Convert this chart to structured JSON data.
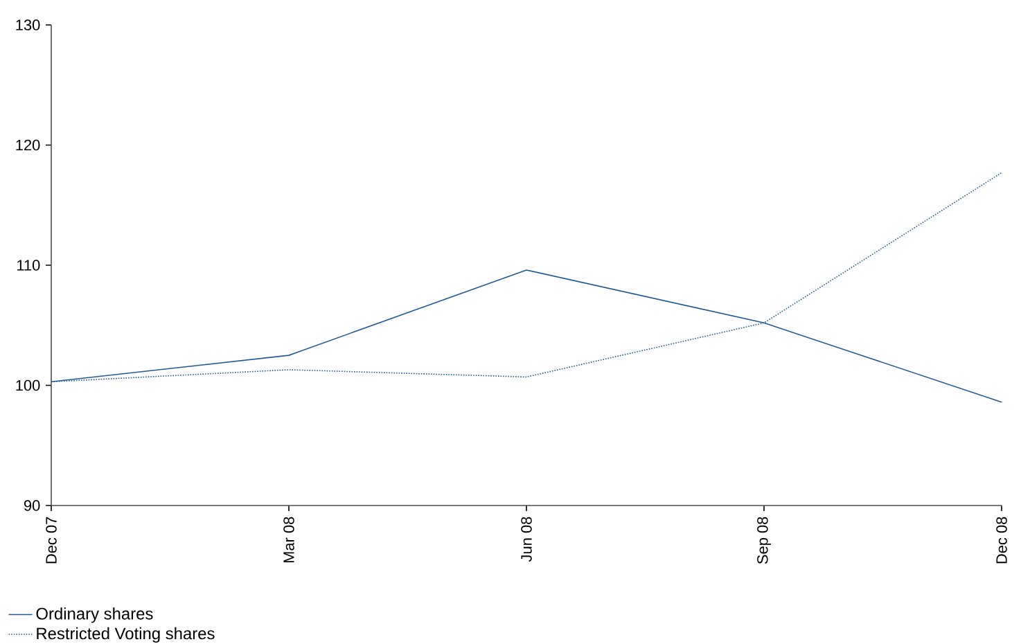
{
  "chart_data": {
    "type": "line",
    "categories": [
      "Dec 07",
      "Mar 08",
      "Jun 08",
      "Sep 08",
      "Dec 08"
    ],
    "series": [
      {
        "name": "Ordinary shares",
        "color": "#1f5a96",
        "line_style": "solid",
        "values": [
          100.3,
          102.5,
          109.6,
          105.2,
          98.6
        ]
      },
      {
        "name": "Restricted Voting shares",
        "color": "#1f5a96",
        "line_style": "dotted",
        "values": [
          100.3,
          101.3,
          100.7,
          105.2,
          117.7
        ]
      }
    ],
    "ylim": [
      90,
      130
    ],
    "yticks": [
      90,
      100,
      110,
      120,
      130
    ],
    "grid": false,
    "legend": "bottom left",
    "marker": "none"
  }
}
